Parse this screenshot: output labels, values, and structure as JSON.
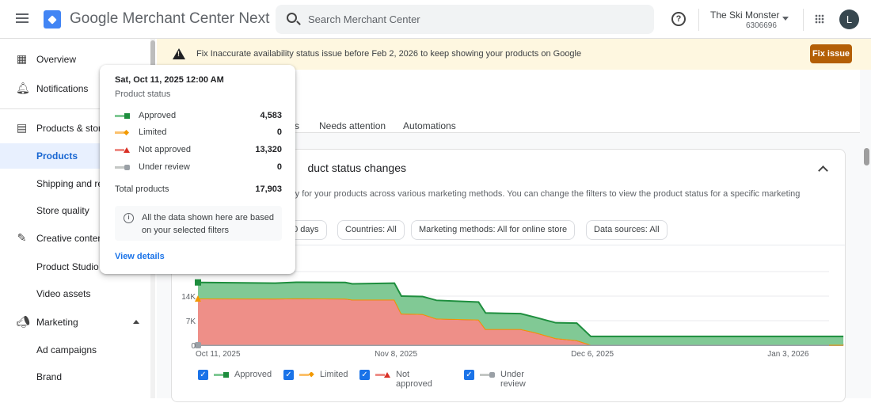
{
  "header": {
    "app_title": "Google Merchant Center Next",
    "search_placeholder": "Search Merchant Center",
    "account_name": "The Ski Monster",
    "account_id": "6306696",
    "avatar_letter": "L"
  },
  "sidebar": {
    "items": [
      {
        "label": "Overview",
        "icon": "dashboard-icon"
      },
      {
        "label": "Notifications",
        "icon": "bell-icon"
      },
      {
        "label": "Products & store",
        "icon": "archive-icon"
      },
      {
        "label": "Products"
      },
      {
        "label": "Shipping and returns"
      },
      {
        "label": "Store quality"
      },
      {
        "label": "Creative content",
        "icon": "magic-wand-icon"
      },
      {
        "label": "Product Studio"
      },
      {
        "label": "Video assets"
      },
      {
        "label": "Marketing",
        "icon": "megaphone-icon"
      },
      {
        "label": "Ad campaigns"
      },
      {
        "label": "Brand"
      }
    ]
  },
  "banner": {
    "text": "Fix Inaccurate availability status issue before Feb 2, 2026 to keep showing your products on Google",
    "button": "Fix issue",
    "button_color": "#b45f06"
  },
  "tabs": [
    {
      "label": "s"
    },
    {
      "label": "Needs attention"
    },
    {
      "label": "Automations"
    }
  ],
  "card": {
    "title": "duct status changes",
    "description": "ry for your products across various marketing methods. You can change the filters to view the product status for a specific marketing",
    "filters": [
      "90 days",
      "Countries: All",
      "Marketing methods: All for online store",
      "Data sources: All"
    ]
  },
  "tooltip": {
    "date": "Sat, Oct 11, 2025 12:00 AM",
    "subtitle": "Product status",
    "rows": [
      {
        "label": "Approved",
        "value": "4,583"
      },
      {
        "label": "Limited",
        "value": "0"
      },
      {
        "label": "Not approved",
        "value": "13,320"
      },
      {
        "label": "Under review",
        "value": "0"
      }
    ],
    "total_label": "Total products",
    "total_value": "17,903",
    "note": "All the data shown here are based on your selected filters",
    "link": "View details"
  },
  "chart_data": {
    "type": "area",
    "stacked": true,
    "x": [
      "2025-10-11",
      "2025-10-22",
      "2025-10-25",
      "2025-11-01",
      "2025-11-02",
      "2025-11-08",
      "2025-11-09",
      "2025-11-12",
      "2025-11-14",
      "2025-11-20",
      "2025-11-21",
      "2025-11-26",
      "2025-11-28",
      "2025-12-01",
      "2025-12-04",
      "2025-12-06",
      "2026-01-11"
    ],
    "series": [
      {
        "name": "Under review",
        "color": "#9aa0a6",
        "values": [
          0,
          0,
          0,
          0,
          0,
          0,
          0,
          0,
          0,
          0,
          0,
          0,
          0,
          0,
          0,
          0,
          0
        ]
      },
      {
        "name": "Not approved",
        "color": "#d93025",
        "fill": "#ee8f88",
        "values": [
          13320,
          13300,
          13350,
          13300,
          13000,
          13000,
          9000,
          8900,
          7600,
          7300,
          4600,
          4600,
          3700,
          2000,
          1400,
          100,
          100
        ]
      },
      {
        "name": "Limited",
        "color": "#f29900",
        "values": [
          0,
          0,
          0,
          0,
          0,
          0,
          0,
          0,
          0,
          0,
          0,
          0,
          0,
          0,
          0,
          0,
          0
        ]
      },
      {
        "name": "Approved",
        "color": "#1e8e3e",
        "fill": "#81c995",
        "values": [
          4583,
          4400,
          4600,
          4600,
          4500,
          4700,
          5000,
          5000,
          5200,
          5000,
          4600,
          4400,
          4300,
          4400,
          4900,
          2400,
          2400
        ]
      }
    ],
    "x_ticks": [
      "Oct 11, 2025",
      "Nov 8, 2025",
      "Dec 6, 2025",
      "Jan 3, 2026"
    ],
    "y_ticks": [
      "0",
      "7K",
      "14K"
    ],
    "ylim": [
      0,
      21000
    ],
    "grid": true,
    "legend": "bottom-left",
    "legend_items": [
      "Approved",
      "Limited",
      "Not approved",
      "Under review"
    ]
  }
}
